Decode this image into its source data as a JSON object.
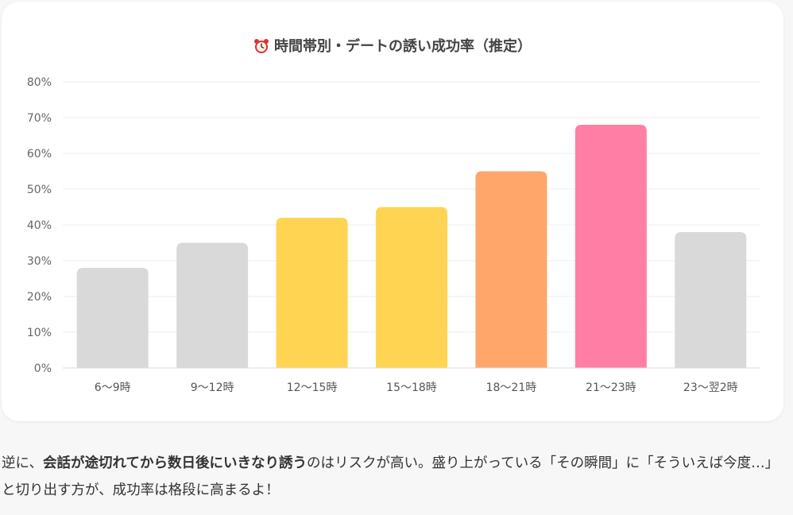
{
  "chart_data": {
    "type": "bar",
    "title": "時間帯別・デートの誘い成功率（推定）",
    "title_icon": "alarm-clock-icon",
    "categories": [
      "6〜9時",
      "9〜12時",
      "12〜15時",
      "15〜18時",
      "18〜21時",
      "21〜23時",
      "23〜翌2時"
    ],
    "values": [
      28,
      35,
      42,
      45,
      55,
      68,
      38
    ],
    "colors": [
      "#d9d9d9",
      "#d9d9d9",
      "#ffd452",
      "#ffd452",
      "#ffa66b",
      "#ff7ea5",
      "#d9d9d9"
    ],
    "ylim": [
      0,
      80
    ],
    "yticks": [
      0,
      10,
      20,
      30,
      40,
      50,
      60,
      70,
      80
    ],
    "ytick_suffix": "%",
    "grid": true,
    "xlabel": "",
    "ylabel": ""
  },
  "body": {
    "prefix": "逆に、",
    "bold": "会話が途切れてから数日後にいきなり誘う",
    "suffix": "のはリスクが高い。盛り上がっている「その瞬間」に「そういえば今度…」と切り出す方が、成功率は格段に高まるよ！"
  }
}
